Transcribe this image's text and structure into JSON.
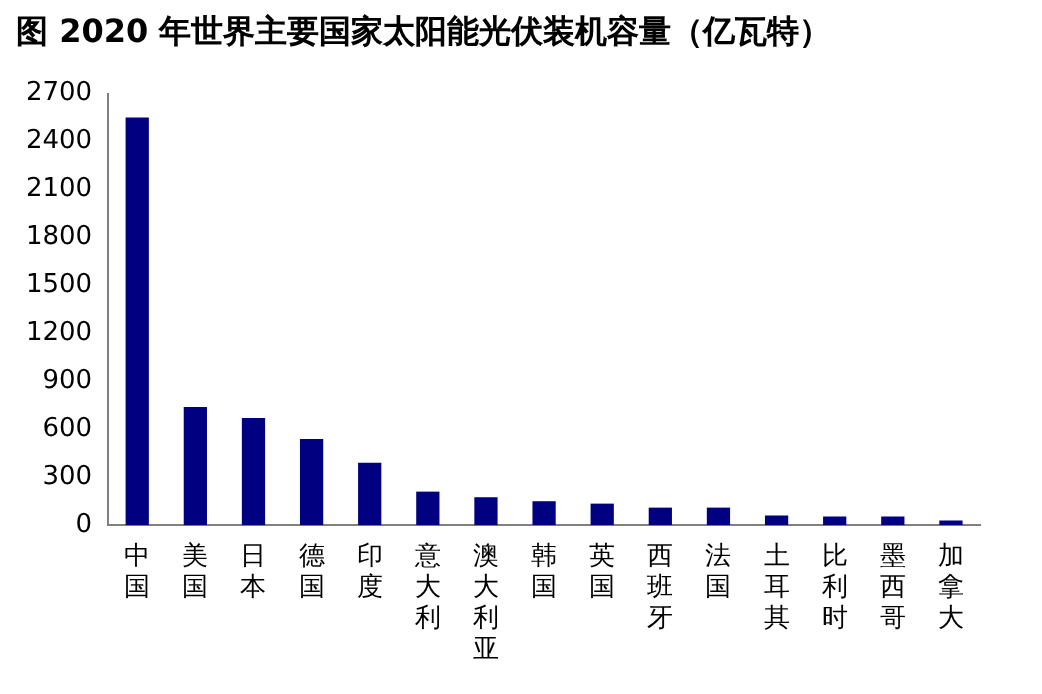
{
  "chart_data": {
    "type": "bar",
    "title": "图  2020 年世界主要国家太阳能光伏装机容量（亿瓦特）",
    "categories": [
      "中国",
      "美国",
      "日本",
      "德国",
      "印度",
      "意大利",
      "澳大利亚",
      "韩国",
      "英国",
      "西班牙",
      "法国",
      "土耳其",
      "比利时",
      "墨西哥",
      "加拿大"
    ],
    "values": [
      2550,
      740,
      670,
      540,
      390,
      210,
      175,
      150,
      135,
      110,
      110,
      60,
      55,
      55,
      30
    ],
    "color": "#000080",
    "ylim": [
      0,
      2700
    ],
    "yticks": [
      0,
      300,
      600,
      900,
      1200,
      1500,
      1800,
      2100,
      2400,
      2700
    ],
    "grid": false,
    "legend": false
  }
}
